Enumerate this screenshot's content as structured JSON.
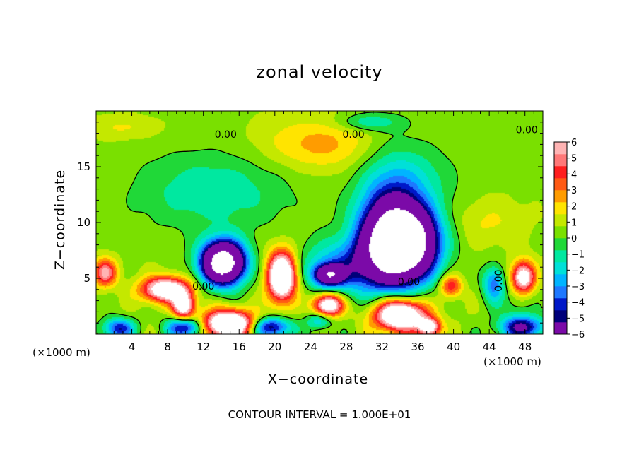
{
  "colors": {
    "cmap": [
      "#7b0aa8",
      "#00007a",
      "#0018c8",
      "#1e78ff",
      "#00b4ff",
      "#00e0d8",
      "#00e8a0",
      "#20d838",
      "#7ae000",
      "#c4e800",
      "#ffe400",
      "#ff9c00",
      "#ff5a14",
      "#ff1e1e",
      "#ff7878",
      "#ffb4b4"
    ],
    "contour": "#000000",
    "background": "#ffffff"
  },
  "chart_data": {
    "type": "heatmap",
    "title": "zonal velocity",
    "xlabel": "X−coordinate",
    "ylabel": "Z−coordinate",
    "x_unit_left": "(×1000 m)",
    "x_unit_right": "(×1000 m)",
    "xlim": [
      0,
      50
    ],
    "ylim": [
      0,
      20
    ],
    "xticks": [
      4,
      8,
      12,
      16,
      20,
      24,
      28,
      32,
      36,
      40,
      44,
      48
    ],
    "yticks": [
      5,
      10,
      15
    ],
    "colorbar": {
      "min": -6,
      "max": 6,
      "ticks": [
        "6",
        "5",
        "4",
        "3",
        "2",
        "1",
        "0",
        "−1",
        "−2",
        "−3",
        "−4",
        "−5",
        "−6"
      ]
    },
    "contour_labels": [
      "0.00",
      "0.00",
      "0.00",
      "0.00",
      "0.00",
      "0.00"
    ],
    "contour_interval_text": "CONTOUR INTERVAL = 1.000E+01",
    "features": [
      {
        "x": 14.2,
        "z": 6.4,
        "value": -14,
        "rx": 2.4,
        "rz": 1.9
      },
      {
        "x": 34.2,
        "z": 8.2,
        "value": -16,
        "rx": 3.6,
        "rz": 3.0
      },
      {
        "x": 33.0,
        "z": 10.2,
        "value": -5,
        "rx": 3.8,
        "rz": 5.5
      },
      {
        "x": 28.5,
        "z": 6.0,
        "value": -4,
        "rx": 5.5,
        "rz": 2.4
      },
      {
        "x": 26.1,
        "z": 5.3,
        "value": -8,
        "rx": 1.6,
        "rz": 0.9
      },
      {
        "x": 20.8,
        "z": 5.2,
        "value": 10,
        "rx": 1.6,
        "rz": 2.2
      },
      {
        "x": 7.8,
        "z": 4.0,
        "value": 8,
        "rx": 2.6,
        "rz": 1.1
      },
      {
        "x": 9.8,
        "z": 2.5,
        "value": 7,
        "rx": 1.2,
        "rz": 1.2
      },
      {
        "x": 14.8,
        "z": 0.9,
        "value": 10,
        "rx": 2.8,
        "rz": 1.2
      },
      {
        "x": 26.0,
        "z": 2.6,
        "value": 8,
        "rx": 1.6,
        "rz": 1.0
      },
      {
        "x": 34.0,
        "z": 1.7,
        "value": 10,
        "rx": 2.8,
        "rz": 1.4
      },
      {
        "x": 37.3,
        "z": 0.6,
        "value": 7,
        "rx": 1.2,
        "rz": 0.8
      },
      {
        "x": 47.8,
        "z": 5.1,
        "value": 7,
        "rx": 1.3,
        "rz": 1.4
      },
      {
        "x": 39.7,
        "z": 4.3,
        "value": 4,
        "rx": 1.2,
        "rz": 1.0
      },
      {
        "x": 1.0,
        "z": 5.5,
        "value": 5,
        "rx": 1.3,
        "rz": 1.2
      },
      {
        "x": 2.5,
        "z": 0.5,
        "value": -5,
        "rx": 1.8,
        "rz": 0.9
      },
      {
        "x": 10.0,
        "z": 0.6,
        "value": -6,
        "rx": 2.0,
        "rz": 0.9
      },
      {
        "x": 19.6,
        "z": 0.6,
        "value": -6,
        "rx": 2.2,
        "rz": 0.9
      },
      {
        "x": 47.7,
        "z": 0.6,
        "value": -6,
        "rx": 2.6,
        "rz": 1.0
      },
      {
        "x": 44.5,
        "z": 4.5,
        "value": -4,
        "rx": 1.2,
        "rz": 1.6
      },
      {
        "x": 25.0,
        "z": 1.2,
        "value": -3,
        "rx": 1.4,
        "rz": 0.8
      },
      {
        "x": 13.0,
        "z": 12.8,
        "value": -2,
        "rx": 8.5,
        "rz": 3.5
      },
      {
        "x": 30.5,
        "z": 19.0,
        "value": -2,
        "rx": 3.5,
        "rz": 0.8
      },
      {
        "x": 37.0,
        "z": 14.0,
        "value": -1,
        "rx": 4.0,
        "rz": 3.0
      },
      {
        "x": 25.0,
        "z": 17.0,
        "value": 2,
        "rx": 6.5,
        "rz": 2.3
      },
      {
        "x": 3.0,
        "z": 18.5,
        "value": 1,
        "rx": 4.0,
        "rz": 1.0
      },
      {
        "x": 44.0,
        "z": 10.0,
        "value": 1,
        "rx": 4.0,
        "rz": 2.0
      },
      {
        "x": 47.0,
        "z": 2.5,
        "value": -1,
        "rx": 2.0,
        "rz": 1.5
      }
    ]
  }
}
